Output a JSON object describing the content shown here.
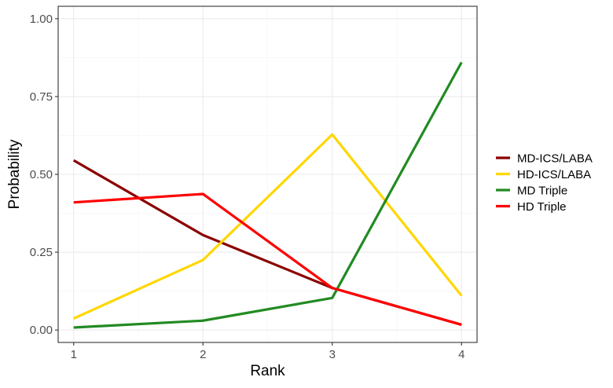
{
  "chart_data": {
    "type": "line",
    "xlabel": "Rank",
    "ylabel": "Probability",
    "x": [
      1,
      2,
      3,
      4
    ],
    "xlim": [
      0.88,
      4.12
    ],
    "ylim": [
      -0.04,
      1.04
    ],
    "xticks": [
      "1",
      "2",
      "3",
      "4"
    ],
    "yticks": [
      "0.00",
      "0.25",
      "0.50",
      "0.75",
      "1.00"
    ],
    "grid": true,
    "legend_position": "right",
    "series": [
      {
        "name": "MD-ICS/LABA",
        "color": "#8B0000",
        "values": [
          0.545,
          0.305,
          0.135,
          0.017
        ]
      },
      {
        "name": "HD-ICS/LABA",
        "color": "#FFD700",
        "values": [
          0.037,
          0.225,
          0.628,
          0.11
        ]
      },
      {
        "name": "MD Triple",
        "color": "#228B22",
        "values": [
          0.008,
          0.03,
          0.103,
          0.86
        ]
      },
      {
        "name": "HD Triple",
        "color": "#FF0000",
        "values": [
          0.41,
          0.437,
          0.135,
          0.017
        ]
      }
    ]
  }
}
